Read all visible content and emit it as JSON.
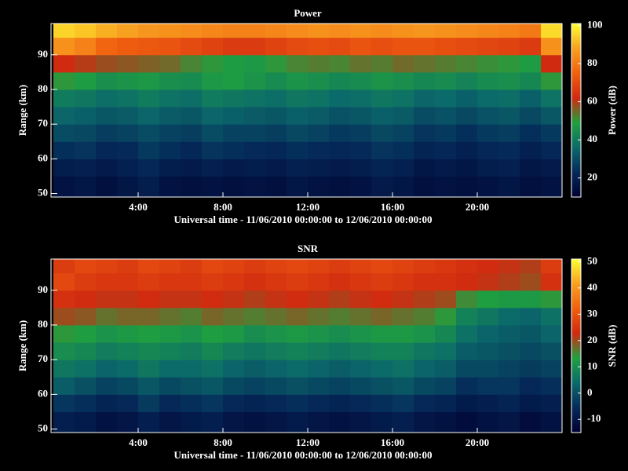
{
  "chart_data": [
    {
      "type": "heatmap",
      "title": "Power",
      "xlabel": "Universal time - 11/06/2010 00:00:00 to 12/06/2010 00:00:00",
      "ylabel": "Range (km)",
      "zlabel": "Power (dB)",
      "xbins": [
        0,
        1,
        2,
        3,
        4,
        5,
        6,
        7,
        8,
        9,
        10,
        11,
        12,
        13,
        14,
        15,
        16,
        17,
        18,
        19,
        20,
        21,
        22,
        23,
        24
      ],
      "ybins": [
        49,
        55,
        60,
        65,
        70,
        75,
        80,
        85,
        90,
        95,
        99
      ],
      "xlim": [
        0,
        24
      ],
      "ylim": [
        49,
        99
      ],
      "zlim": [
        10,
        101
      ],
      "xticks": [
        {
          "value": 4,
          "label": "4:00"
        },
        {
          "value": 8,
          "label": "8:00"
        },
        {
          "value": 12,
          "label": "12:00"
        },
        {
          "value": 16,
          "label": "16:00"
        },
        {
          "value": 20,
          "label": "20:00"
        }
      ],
      "yticks": [
        50,
        60,
        70,
        80,
        90
      ],
      "zticks": [
        20,
        40,
        60,
        80,
        100
      ],
      "colormap": [
        "#000030",
        "#052a5a",
        "#0b6a6a",
        "#20a040",
        "#d02a10",
        "#f06010",
        "#f8a020",
        "#ffff30"
      ],
      "values": [
        [
          16,
          17,
          15,
          17,
          19,
          16,
          15,
          16,
          15,
          16,
          15,
          17,
          16,
          15,
          16,
          18,
          17,
          15,
          16,
          15,
          16,
          17,
          15,
          16
        ],
        [
          19,
          20,
          18,
          20,
          22,
          19,
          18,
          20,
          18,
          19,
          18,
          20,
          19,
          18,
          19,
          21,
          20,
          17,
          18,
          17,
          19,
          20,
          17,
          18
        ],
        [
          24,
          25,
          22,
          23,
          26,
          24,
          22,
          25,
          24,
          23,
          22,
          24,
          23,
          22,
          23,
          25,
          24,
          21,
          22,
          20,
          22,
          23,
          20,
          22
        ],
        [
          30,
          29,
          27,
          28,
          30,
          28,
          27,
          30,
          28,
          28,
          27,
          29,
          28,
          26,
          27,
          29,
          28,
          25,
          26,
          24,
          26,
          27,
          24,
          26
        ],
        [
          35,
          34,
          32,
          33,
          35,
          33,
          32,
          35,
          34,
          33,
          32,
          34,
          33,
          31,
          32,
          34,
          33,
          30,
          31,
          29,
          31,
          32,
          29,
          32
        ],
        [
          40,
          39,
          37,
          38,
          40,
          38,
          37,
          40,
          39,
          38,
          37,
          39,
          38,
          36,
          37,
          39,
          38,
          35,
          36,
          34,
          36,
          37,
          34,
          38
        ],
        [
          50,
          48,
          45,
          46,
          47,
          45,
          44,
          47,
          48,
          46,
          44,
          46,
          45,
          43,
          44,
          46,
          45,
          43,
          44,
          42,
          44,
          45,
          43,
          50
        ],
        [
          62,
          60,
          58,
          57,
          56,
          55,
          52,
          50,
          48,
          47,
          50,
          52,
          53,
          52,
          54,
          53,
          55,
          54,
          53,
          52,
          51,
          50,
          48,
          62
        ],
        [
          85,
          82,
          76,
          74,
          73,
          72,
          70,
          68,
          66,
          66,
          68,
          70,
          71,
          70,
          72,
          71,
          72,
          72,
          71,
          70,
          69,
          68,
          66,
          85
        ],
        [
          95,
          93,
          90,
          88,
          86,
          85,
          84,
          83,
          82,
          82,
          83,
          84,
          85,
          84,
          85,
          84,
          85,
          86,
          85,
          84,
          83,
          82,
          80,
          96
        ]
      ]
    },
    {
      "type": "heatmap",
      "title": "SNR",
      "xlabel": "Universal time - 11/06/2010 00:00:00 to 12/06/2010 00:00:00",
      "ylabel": "Range (km)",
      "zlabel": "SNR (dB)",
      "xbins": [
        0,
        1,
        2,
        3,
        4,
        5,
        6,
        7,
        8,
        9,
        10,
        11,
        12,
        13,
        14,
        15,
        16,
        17,
        18,
        19,
        20,
        21,
        22,
        23,
        24
      ],
      "ybins": [
        49,
        55,
        60,
        65,
        70,
        75,
        80,
        85,
        90,
        95,
        99
      ],
      "xlim": [
        0,
        24
      ],
      "ylim": [
        49,
        99
      ],
      "zlim": [
        -15,
        51
      ],
      "xticks": [
        {
          "value": 4,
          "label": "4:00"
        },
        {
          "value": 8,
          "label": "8:00"
        },
        {
          "value": 12,
          "label": "12:00"
        },
        {
          "value": 16,
          "label": "16:00"
        },
        {
          "value": 20,
          "label": "20:00"
        }
      ],
      "yticks": [
        50,
        60,
        70,
        80,
        90
      ],
      "zticks": [
        -10,
        0,
        10,
        20,
        30,
        40,
        50
      ],
      "colormap": [
        "#000030",
        "#052a5a",
        "#0b6a6a",
        "#20a040",
        "#d02a10",
        "#f06010",
        "#f8a020",
        "#ffff30"
      ],
      "values": [
        [
          -8,
          -9,
          -11,
          -10,
          -8,
          -10,
          -9,
          -8,
          -10,
          -11,
          -10,
          -9,
          -10,
          -11,
          -10,
          -9,
          -8,
          -10,
          -11,
          -12,
          -11,
          -10,
          -12,
          -11
        ],
        [
          -4,
          -5,
          -7,
          -6,
          -3,
          -6,
          -5,
          -4,
          -6,
          -7,
          -6,
          -5,
          -6,
          -7,
          -6,
          -5,
          -4,
          -6,
          -7,
          -9,
          -8,
          -7,
          -9,
          -8
        ],
        [
          2,
          0,
          -2,
          -1,
          1,
          -1,
          0,
          1,
          -1,
          -2,
          -1,
          0,
          -1,
          -2,
          -1,
          0,
          1,
          -1,
          -2,
          -5,
          -4,
          -4,
          -6,
          -5
        ],
        [
          6,
          5,
          3,
          4,
          6,
          4,
          4,
          5,
          3,
          2,
          3,
          4,
          3,
          2,
          3,
          4,
          5,
          3,
          2,
          -1,
          -1,
          -2,
          -3,
          -2
        ],
        [
          10,
          9,
          7,
          8,
          9,
          8,
          7,
          9,
          7,
          6,
          7,
          8,
          7,
          6,
          7,
          8,
          8,
          6,
          5,
          2,
          1,
          0,
          -1,
          0
        ],
        [
          14,
          13,
          11,
          12,
          13,
          12,
          11,
          13,
          12,
          10,
          11,
          12,
          11,
          10,
          11,
          12,
          12,
          11,
          9,
          5,
          3,
          2,
          1,
          3
        ],
        [
          20,
          19,
          17,
          18,
          18,
          17,
          16,
          18,
          17,
          16,
          17,
          18,
          17,
          16,
          17,
          18,
          17,
          16,
          14,
          8,
          6,
          4,
          3,
          5
        ],
        [
          24,
          23,
          22,
          22,
          23,
          22,
          22,
          23,
          22,
          21,
          22,
          23,
          22,
          21,
          22,
          23,
          22,
          21,
          20,
          15,
          13,
          12,
          12,
          14
        ],
        [
          28,
          26,
          25,
          25,
          26,
          25,
          25,
          26,
          25,
          24,
          25,
          26,
          25,
          24,
          25,
          26,
          25,
          24,
          24,
          23,
          22,
          21,
          20,
          24
        ],
        [
          26,
          28,
          27,
          26,
          28,
          27,
          26,
          28,
          27,
          26,
          27,
          28,
          27,
          26,
          27,
          28,
          27,
          26,
          25,
          24,
          23,
          22,
          21,
          26
        ]
      ]
    }
  ]
}
